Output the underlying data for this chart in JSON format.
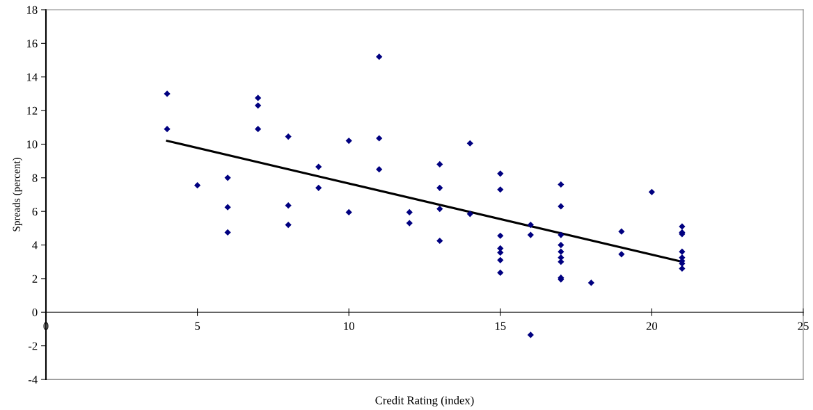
{
  "chart_data": {
    "type": "scatter",
    "xlabel": "Credit Rating (index)",
    "ylabel": "Spreads (percent)",
    "xlim": [
      0,
      25
    ],
    "xticks": [
      0,
      5,
      10,
      15,
      20,
      25
    ],
    "ylim": [
      -4,
      18
    ],
    "yticks": [
      -4,
      -2,
      0,
      2,
      4,
      6,
      8,
      10,
      12,
      14,
      16,
      18
    ],
    "grid": false,
    "legend": false,
    "marker": "diamond",
    "series": [
      {
        "color": "#000080",
        "x": [
          4,
          4,
          5,
          6,
          6,
          6,
          7,
          7,
          7,
          8,
          8,
          8,
          9,
          9,
          10,
          10,
          11,
          11,
          11,
          12,
          12,
          13,
          13,
          13,
          13,
          14,
          14,
          15,
          15,
          15,
          15,
          15,
          15,
          15,
          16,
          16,
          16,
          17,
          17,
          17,
          17,
          17,
          17,
          17,
          17,
          17,
          18,
          19,
          19,
          20,
          21,
          21,
          21,
          21,
          21,
          21,
          21,
          21
        ],
        "values": [
          13.0,
          10.9,
          7.55,
          8.0,
          6.25,
          4.75,
          12.75,
          12.3,
          10.9,
          10.45,
          6.35,
          5.2,
          8.65,
          7.4,
          10.2,
          5.95,
          15.2,
          10.35,
          8.5,
          5.95,
          5.3,
          8.8,
          7.4,
          6.15,
          4.25,
          10.05,
          5.85,
          8.25,
          7.3,
          4.55,
          3.8,
          3.55,
          3.1,
          2.35,
          5.2,
          4.6,
          -1.35,
          7.6,
          6.3,
          4.6,
          4.0,
          3.6,
          3.25,
          3.0,
          2.05,
          1.95,
          1.75,
          4.8,
          3.45,
          7.15,
          5.1,
          4.75,
          4.65,
          3.6,
          3.25,
          3.05,
          2.9,
          2.6
        ]
      },
      {
        "type": "line",
        "color": "#000000",
        "marker": "none",
        "line_style": "solid",
        "x": [
          4,
          21
        ],
        "values": [
          10.2,
          3.0
        ]
      }
    ]
  }
}
